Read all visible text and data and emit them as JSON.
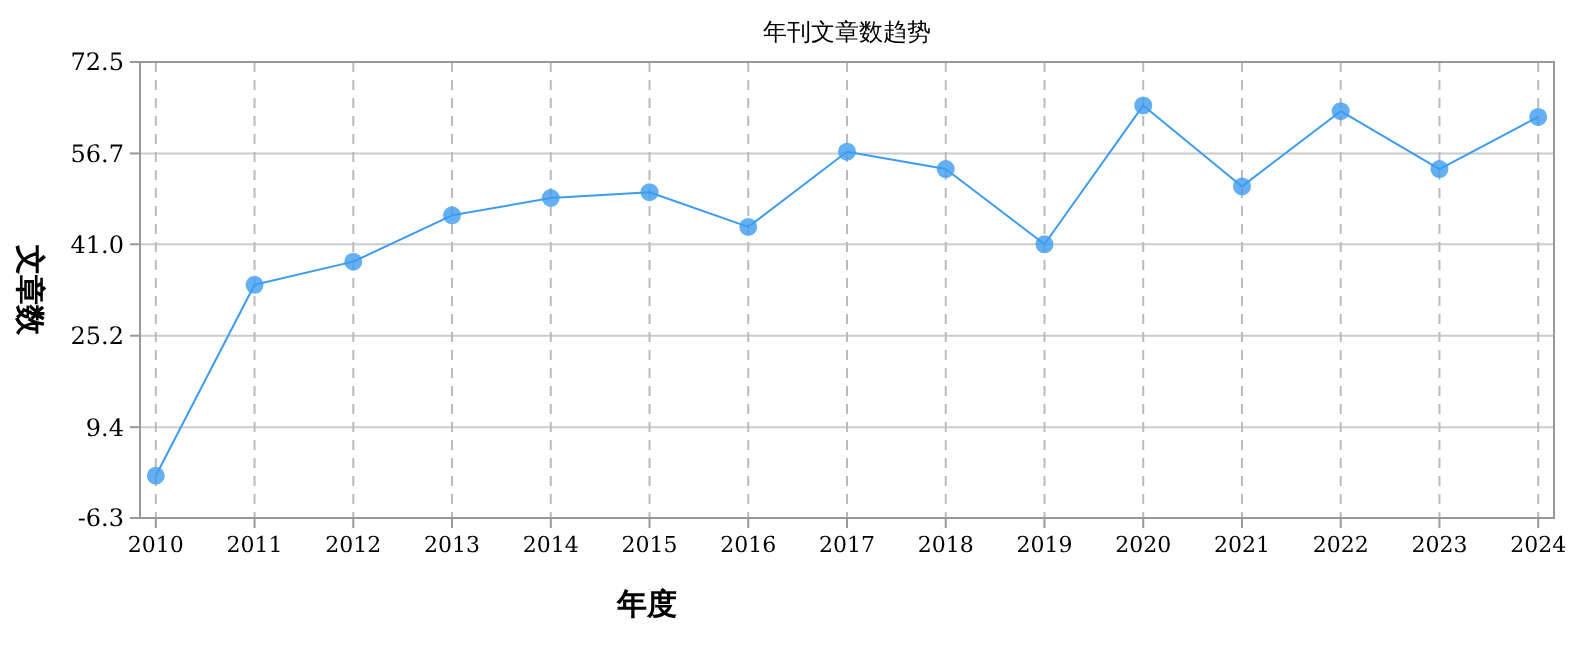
{
  "chart_data": {
    "type": "line",
    "title": "年刊文章数趋势",
    "xlabel": "年度",
    "ylabel": "文章数",
    "categories": [
      "2010",
      "2011",
      "2012",
      "2013",
      "2014",
      "2015",
      "2016",
      "2017",
      "2018",
      "2019",
      "2020",
      "2021",
      "2022",
      "2023",
      "2024"
    ],
    "series": [
      {
        "color": "#3d9cf0",
        "values": [
          1,
          34,
          38,
          46,
          49,
          50,
          44,
          57,
          54,
          41,
          65,
          51,
          64,
          54,
          63
        ]
      }
    ],
    "ylim": [
      -6.3,
      72.5
    ],
    "yticks": [
      -6.3,
      9.4,
      25.2,
      {
        "value": 41,
        "label": "41.0"
      },
      56.7,
      72.5
    ],
    "grid": true,
    "marker": "circle",
    "line_style": "solid"
  }
}
